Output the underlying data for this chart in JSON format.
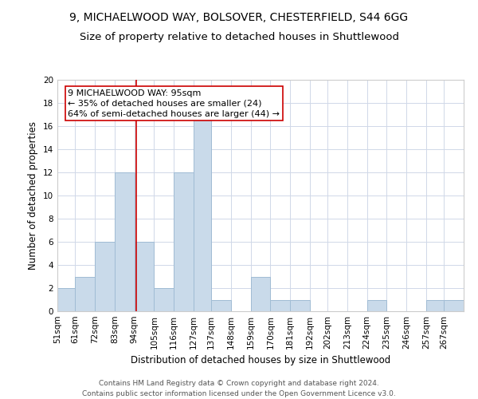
{
  "title1": "9, MICHAELWOOD WAY, BOLSOVER, CHESTERFIELD, S44 6GG",
  "title2": "Size of property relative to detached houses in Shuttlewood",
  "xlabel": "Distribution of detached houses by size in Shuttlewood",
  "ylabel": "Number of detached properties",
  "bin_labels": [
    "51sqm",
    "61sqm",
    "72sqm",
    "83sqm",
    "94sqm",
    "105sqm",
    "116sqm",
    "127sqm",
    "137sqm",
    "148sqm",
    "159sqm",
    "170sqm",
    "181sqm",
    "192sqm",
    "202sqm",
    "213sqm",
    "224sqm",
    "235sqm",
    "246sqm",
    "257sqm",
    "267sqm"
  ],
  "bin_edges": [
    51,
    61,
    72,
    83,
    94,
    105,
    116,
    127,
    137,
    148,
    159,
    170,
    181,
    192,
    202,
    213,
    224,
    235,
    246,
    257,
    267,
    278
  ],
  "counts": [
    2,
    3,
    6,
    12,
    6,
    2,
    12,
    17,
    1,
    0,
    3,
    1,
    1,
    0,
    0,
    0,
    1,
    0,
    0,
    1,
    1
  ],
  "bar_color": "#c9daea",
  "bar_edgecolor": "#a0bcd4",
  "vline_x": 95,
  "vline_color": "#cc0000",
  "annotation_line1": "9 MICHAELWOOD WAY: 95sqm",
  "annotation_line2": "← 35% of detached houses are smaller (24)",
  "annotation_line3": "64% of semi-detached houses are larger (44) →",
  "annotation_box_edgecolor": "#cc0000",
  "ylim": [
    0,
    20
  ],
  "yticks": [
    0,
    2,
    4,
    6,
    8,
    10,
    12,
    14,
    16,
    18,
    20
  ],
  "footer": "Contains HM Land Registry data © Crown copyright and database right 2024.\nContains public sector information licensed under the Open Government Licence v3.0.",
  "grid_color": "#d0d8e8",
  "title_fontsize": 10,
  "subtitle_fontsize": 9.5,
  "axis_label_fontsize": 8.5,
  "tick_fontsize": 7.5,
  "annotation_fontsize": 8,
  "footer_fontsize": 6.5
}
